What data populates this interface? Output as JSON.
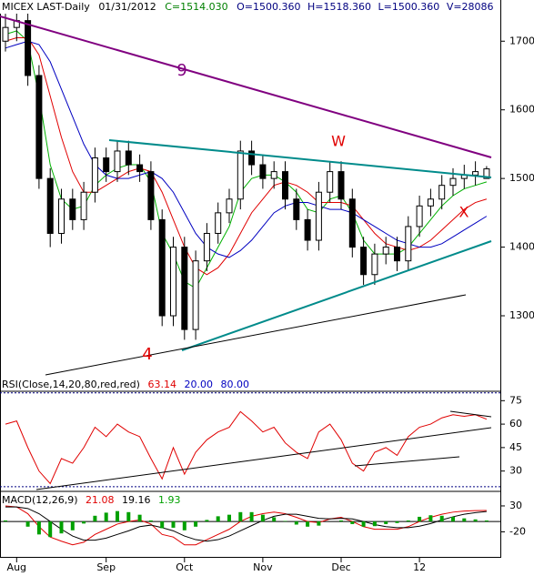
{
  "header": {
    "symbol": "MICEX LAST-Daily",
    "date": "01/31/2012",
    "close": "C=1514.030",
    "open": "O=1500.360",
    "high": "H=1518.360",
    "low": "L=1500.360",
    "volume": "V=28086"
  },
  "chart_data": [
    {
      "type": "candlestick",
      "ylim": [
        1190,
        1760
      ],
      "yticks": [
        1300,
        1400,
        1500,
        1600,
        1700
      ],
      "annotations": [
        {
          "text": "9",
          "color": "#800080"
        },
        {
          "text": "W",
          "color": "#e00000"
        },
        {
          "text": "X",
          "color": "#e00000"
        },
        {
          "text": "4",
          "color": "#e00000"
        }
      ],
      "open": [
        1700,
        1720,
        1730,
        1650,
        1500,
        1420,
        1470,
        1440,
        1480,
        1530,
        1510,
        1540,
        1520,
        1510,
        1440,
        1300,
        1400,
        1280,
        1380,
        1420,
        1450,
        1470,
        1540,
        1520,
        1500,
        1510,
        1470,
        1440,
        1410,
        1480,
        1510,
        1470,
        1400,
        1360,
        1390,
        1400,
        1380,
        1430,
        1460,
        1470,
        1490,
        1500,
        1505,
        1500
      ],
      "high": [
        1740,
        1750,
        1745,
        1665,
        1515,
        1485,
        1485,
        1495,
        1545,
        1545,
        1555,
        1555,
        1535,
        1525,
        1455,
        1415,
        1415,
        1395,
        1435,
        1465,
        1485,
        1555,
        1555,
        1535,
        1525,
        1525,
        1485,
        1455,
        1495,
        1525,
        1525,
        1485,
        1415,
        1405,
        1415,
        1415,
        1445,
        1475,
        1485,
        1505,
        1515,
        1520,
        1525,
        1518
      ],
      "low": [
        1685,
        1700,
        1635,
        1485,
        1400,
        1405,
        1425,
        1425,
        1465,
        1495,
        1495,
        1505,
        1495,
        1425,
        1285,
        1285,
        1265,
        1265,
        1365,
        1405,
        1435,
        1455,
        1505,
        1485,
        1485,
        1455,
        1425,
        1395,
        1395,
        1465,
        1455,
        1385,
        1345,
        1345,
        1375,
        1365,
        1365,
        1415,
        1445,
        1455,
        1475,
        1485,
        1490,
        1500
      ],
      "close": [
        1720,
        1730,
        1650,
        1500,
        1420,
        1470,
        1440,
        1480,
        1530,
        1510,
        1540,
        1520,
        1510,
        1440,
        1300,
        1400,
        1280,
        1380,
        1420,
        1450,
        1470,
        1540,
        1520,
        1500,
        1510,
        1470,
        1440,
        1410,
        1480,
        1510,
        1470,
        1400,
        1360,
        1390,
        1400,
        1380,
        1430,
        1460,
        1470,
        1490,
        1500,
        1505,
        1510,
        1514
      ],
      "series": [
        {
          "color": "#00b000",
          "values": [
            1710,
            1715,
            1700,
            1620,
            1520,
            1470,
            1455,
            1460,
            1490,
            1505,
            1515,
            1520,
            1520,
            1495,
            1420,
            1390,
            1350,
            1340,
            1370,
            1400,
            1430,
            1480,
            1500,
            1505,
            1505,
            1495,
            1480,
            1455,
            1450,
            1470,
            1475,
            1450,
            1410,
            1390,
            1390,
            1390,
            1400,
            1420,
            1440,
            1460,
            1475,
            1485,
            1490,
            1495
          ]
        },
        {
          "color": "#e00000",
          "values": [
            1700,
            1705,
            1705,
            1680,
            1620,
            1560,
            1510,
            1480,
            1480,
            1490,
            1500,
            1510,
            1515,
            1510,
            1480,
            1440,
            1400,
            1370,
            1360,
            1370,
            1390,
            1420,
            1450,
            1470,
            1490,
            1495,
            1490,
            1480,
            1465,
            1465,
            1465,
            1460,
            1440,
            1420,
            1405,
            1400,
            1395,
            1400,
            1410,
            1425,
            1440,
            1455,
            1465,
            1470
          ]
        },
        {
          "color": "#0000c0",
          "values": [
            1690,
            1695,
            1700,
            1695,
            1670,
            1630,
            1590,
            1550,
            1520,
            1505,
            1500,
            1500,
            1505,
            1510,
            1500,
            1480,
            1450,
            1420,
            1400,
            1390,
            1385,
            1395,
            1410,
            1430,
            1450,
            1460,
            1465,
            1465,
            1460,
            1455,
            1455,
            1450,
            1440,
            1430,
            1420,
            1410,
            1405,
            1400,
            1400,
            1405,
            1415,
            1425,
            1435,
            1445
          ]
        }
      ]
    },
    {
      "type": "line",
      "title": "RSI(Close,14,20,80,red,red)",
      "last_label": "63.14",
      "ylim": [
        17,
        81
      ],
      "yticks": [
        30,
        45,
        60,
        75
      ],
      "levels": [
        {
          "value": 20,
          "label": "20.00"
        },
        {
          "value": 80,
          "label": "80.00"
        }
      ],
      "series": [
        {
          "color": "#e00000",
          "values": [
            60,
            62,
            45,
            30,
            22,
            38,
            35,
            45,
            58,
            52,
            60,
            55,
            52,
            38,
            25,
            45,
            28,
            42,
            50,
            55,
            58,
            68,
            62,
            55,
            58,
            48,
            42,
            38,
            55,
            60,
            50,
            35,
            30,
            42,
            45,
            40,
            52,
            58,
            60,
            64,
            66,
            65,
            66,
            63.14
          ]
        }
      ]
    },
    {
      "type": "macd",
      "title": "MACD(12,26,9)",
      "ylim": [
        -70,
        58
      ],
      "yticks": [
        -20,
        30
      ],
      "zero_line": true,
      "categories": [
        null,
        "Aug",
        null,
        null,
        null,
        null,
        null,
        null,
        null,
        "Sep",
        null,
        null,
        null,
        null,
        null,
        null,
        "Oct",
        null,
        null,
        null,
        null,
        null,
        null,
        "Nov",
        null,
        null,
        null,
        null,
        null,
        null,
        "Dec",
        null,
        null,
        null,
        null,
        null,
        null,
        "12",
        null,
        null,
        null,
        null,
        null,
        null
      ],
      "series": [
        {
          "name": "21.08",
          "color": "#e00000",
          "values": [
            30,
            28,
            15,
            -10,
            -30,
            -38,
            -45,
            -40,
            -25,
            -15,
            -5,
            0,
            3,
            -5,
            -25,
            -30,
            -45,
            -45,
            -35,
            -25,
            -15,
            0,
            10,
            15,
            18,
            15,
            8,
            0,
            -2,
            5,
            8,
            0,
            -10,
            -15,
            -15,
            -15,
            -10,
            0,
            8,
            14,
            18,
            20,
            21,
            21.08
          ]
        },
        {
          "name": "19.16",
          "color": "#000000",
          "values": [
            28,
            28,
            25,
            15,
            0,
            -15,
            -28,
            -36,
            -36,
            -32,
            -25,
            -18,
            -10,
            -7,
            -12,
            -18,
            -28,
            -35,
            -38,
            -35,
            -28,
            -18,
            -8,
            2,
            10,
            14,
            14,
            10,
            6,
            5,
            6,
            5,
            0,
            -6,
            -10,
            -12,
            -12,
            -9,
            -4,
            3,
            9,
            14,
            17,
            19.16
          ]
        },
        {
          "name": "1.93",
          "color": "#00a000",
          "type": "histogram",
          "values": [
            2,
            0,
            -10,
            -25,
            -30,
            -23,
            -17,
            -4,
            11,
            17,
            20,
            18,
            13,
            2,
            -13,
            -12,
            -17,
            -10,
            3,
            10,
            13,
            18,
            18,
            13,
            8,
            1,
            -6,
            -10,
            -8,
            0,
            2,
            -5,
            -10,
            -9,
            -5,
            -3,
            2,
            9,
            12,
            11,
            9,
            6,
            4,
            1.93
          ]
        }
      ]
    }
  ]
}
